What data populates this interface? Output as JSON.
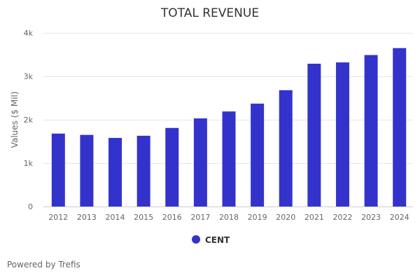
{
  "chart_data": {
    "type": "bar",
    "title": "TOTAL REVENUE",
    "xlabel": "",
    "ylabel": "Values ($ Mil)",
    "categories": [
      "2012",
      "2013",
      "2014",
      "2015",
      "2016",
      "2017",
      "2018",
      "2019",
      "2020",
      "2021",
      "2022",
      "2023",
      "2024"
    ],
    "series": [
      {
        "name": "CENT",
        "color": "#3333cc",
        "values": [
          1680,
          1650,
          1580,
          1630,
          1810,
          2030,
          2190,
          2370,
          2680,
          3290,
          3320,
          3490,
          3650
        ]
      }
    ],
    "ylim": [
      0,
      4000
    ],
    "yticks": [
      0,
      1000,
      2000,
      3000,
      4000
    ],
    "ytick_labels": [
      "0",
      "1k",
      "2k",
      "3k",
      "4k"
    ],
    "grid": true,
    "legend_position": "bottom-center"
  },
  "footer": {
    "credit": "Powered by Trefis"
  }
}
